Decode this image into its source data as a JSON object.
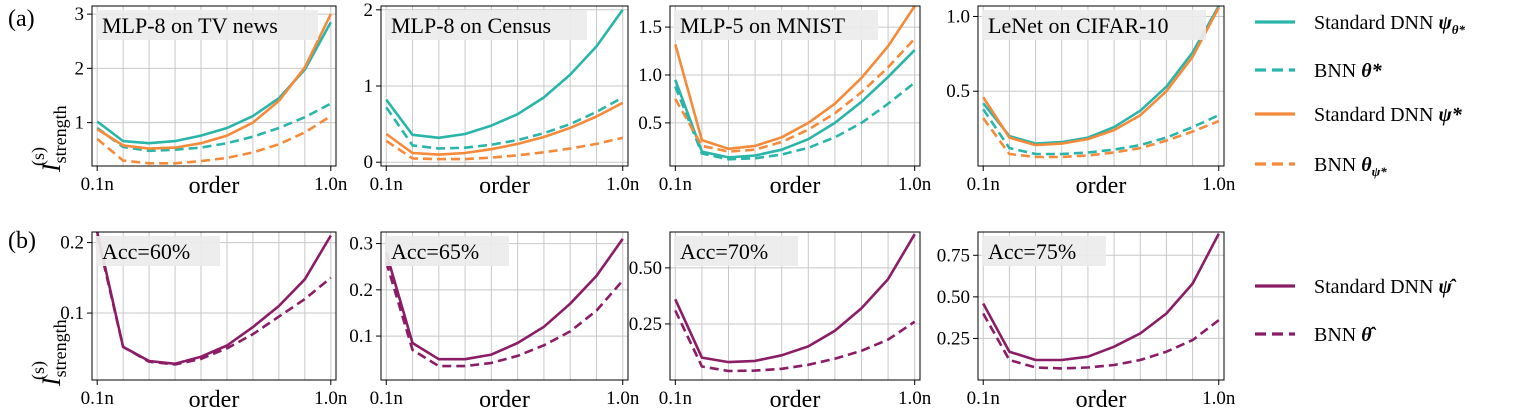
{
  "panel_labels": [
    "(a)",
    "(b)"
  ],
  "ylabel_main": "I",
  "ylabel_sup": "(s)",
  "ylabel_sub": "strength",
  "legend_top": [
    {
      "main": "Standard DNN ",
      "sym": "ψ",
      "sub": "θ*",
      "color": "#2ab5aa",
      "dash": false
    },
    {
      "main": "BNN ",
      "sym": "θ*",
      "sub": "",
      "color": "#2ab5aa",
      "dash": true
    },
    {
      "main": "Standard DNN ",
      "sym": "ψ*",
      "sub": "",
      "color": "#f58a3a",
      "dash": false
    },
    {
      "main": "BNN ",
      "sym": "θ",
      "sub": "ψ*",
      "color": "#f58a3a",
      "dash": true
    }
  ],
  "legend_bottom": [
    {
      "main": "Standard DNN ",
      "sym": "ψ̂",
      "sub": "",
      "color": "#8b1c66",
      "dash": false
    },
    {
      "main": "BNN ",
      "sym": "θ̂",
      "sub": "",
      "color": "#8b1c66",
      "dash": true
    }
  ],
  "chart_data": [
    {
      "type": "line",
      "row": 0,
      "title": "MLP-8 on TV news",
      "xlabel": "order",
      "xtick_labels": [
        "0.1n",
        "1.0n"
      ],
      "xlim": [
        0.08,
        1.02
      ],
      "ylim": [
        0.2,
        3.15
      ],
      "yticks": [
        1,
        2,
        3
      ],
      "ytick_labels": [
        "1",
        "2",
        "3"
      ],
      "x": [
        0.1,
        0.2,
        0.3,
        0.4,
        0.5,
        0.6,
        0.7,
        0.8,
        0.9,
        1.0
      ],
      "series": [
        {
          "name": "Standard DNN ψ_θ*",
          "color": "#2ab5aa",
          "dash": false,
          "values": [
            1.02,
            0.66,
            0.62,
            0.66,
            0.76,
            0.9,
            1.12,
            1.45,
            1.98,
            2.85
          ]
        },
        {
          "name": "BNN θ*",
          "color": "#2ab5aa",
          "dash": true,
          "values": [
            0.9,
            0.55,
            0.48,
            0.5,
            0.54,
            0.62,
            0.74,
            0.9,
            1.1,
            1.35
          ]
        },
        {
          "name": "Standard DNN ψ*",
          "color": "#f58a3a",
          "dash": false,
          "values": [
            0.88,
            0.58,
            0.52,
            0.54,
            0.62,
            0.76,
            1.0,
            1.4,
            2.02,
            3.0
          ]
        },
        {
          "name": "BNN θ_ψ*",
          "color": "#f58a3a",
          "dash": true,
          "values": [
            0.7,
            0.3,
            0.25,
            0.25,
            0.29,
            0.35,
            0.45,
            0.6,
            0.82,
            1.12
          ]
        }
      ]
    },
    {
      "type": "line",
      "row": 0,
      "title": "MLP-8 on Census",
      "xlabel": "order",
      "xtick_labels": [
        "0.1n",
        "1.0n"
      ],
      "xlim": [
        0.08,
        1.02
      ],
      "ylim": [
        -0.05,
        2.05
      ],
      "yticks": [
        0,
        1,
        2
      ],
      "ytick_labels": [
        "0",
        "1",
        "2"
      ],
      "x": [
        0.1,
        0.2,
        0.3,
        0.4,
        0.5,
        0.6,
        0.7,
        0.8,
        0.9,
        1.0
      ],
      "series": [
        {
          "name": "Standard DNN ψ_θ*",
          "color": "#2ab5aa",
          "dash": false,
          "values": [
            0.82,
            0.36,
            0.32,
            0.37,
            0.48,
            0.63,
            0.85,
            1.15,
            1.52,
            2.0
          ]
        },
        {
          "name": "BNN θ*",
          "color": "#2ab5aa",
          "dash": true,
          "values": [
            0.72,
            0.22,
            0.18,
            0.19,
            0.23,
            0.29,
            0.38,
            0.5,
            0.66,
            0.85
          ]
        },
        {
          "name": "Standard DNN ψ*",
          "color": "#f58a3a",
          "dash": false,
          "values": [
            0.37,
            0.12,
            0.1,
            0.12,
            0.17,
            0.24,
            0.33,
            0.45,
            0.6,
            0.78
          ]
        },
        {
          "name": "BNN θ_ψ*",
          "color": "#f58a3a",
          "dash": true,
          "values": [
            0.28,
            0.05,
            0.04,
            0.04,
            0.06,
            0.09,
            0.13,
            0.18,
            0.24,
            0.32
          ]
        }
      ]
    },
    {
      "type": "line",
      "row": 0,
      "title": "MLP-5 on MNIST",
      "xlabel": "order",
      "xtick_labels": [
        "0.1n",
        "1.0n"
      ],
      "xlim": [
        0.08,
        1.02
      ],
      "ylim": [
        0.05,
        1.72
      ],
      "yticks": [
        0.5,
        1.0,
        1.5
      ],
      "ytick_labels": [
        "0.5",
        "1.0",
        "1.5"
      ],
      "x": [
        0.1,
        0.2,
        0.3,
        0.4,
        0.5,
        0.6,
        0.7,
        0.8,
        0.9,
        1.0
      ],
      "series": [
        {
          "name": "Standard DNN ψ_θ*",
          "color": "#2ab5aa",
          "dash": false,
          "values": [
            0.95,
            0.2,
            0.14,
            0.16,
            0.22,
            0.33,
            0.5,
            0.72,
            0.98,
            1.26
          ]
        },
        {
          "name": "BNN θ*",
          "color": "#2ab5aa",
          "dash": true,
          "values": [
            0.88,
            0.18,
            0.12,
            0.13,
            0.17,
            0.24,
            0.35,
            0.5,
            0.7,
            0.92
          ]
        },
        {
          "name": "Standard DNN ψ*",
          "color": "#f58a3a",
          "dash": false,
          "values": [
            1.32,
            0.32,
            0.23,
            0.26,
            0.35,
            0.5,
            0.7,
            0.97,
            1.3,
            1.72
          ]
        },
        {
          "name": "BNN θ_ψ*",
          "color": "#f58a3a",
          "dash": true,
          "values": [
            0.75,
            0.26,
            0.2,
            0.22,
            0.3,
            0.43,
            0.6,
            0.82,
            1.08,
            1.38
          ]
        }
      ]
    },
    {
      "type": "line",
      "row": 0,
      "title": "LeNet on CIFAR-10",
      "xlabel": "order",
      "xtick_labels": [
        "0.1n",
        "1.0n"
      ],
      "xlim": [
        0.08,
        1.02
      ],
      "ylim": [
        0.0,
        1.07
      ],
      "yticks": [
        0.5,
        1.0
      ],
      "ytick_labels": [
        "0.5",
        "1.0"
      ],
      "x": [
        0.1,
        0.2,
        0.3,
        0.4,
        0.5,
        0.6,
        0.7,
        0.8,
        0.9,
        1.0
      ],
      "series": [
        {
          "name": "Standard DNN ψ_θ*",
          "color": "#2ab5aa",
          "dash": false,
          "values": [
            0.42,
            0.2,
            0.15,
            0.16,
            0.19,
            0.26,
            0.37,
            0.53,
            0.76,
            1.07
          ]
        },
        {
          "name": "BNN θ*",
          "color": "#2ab5aa",
          "dash": true,
          "values": [
            0.38,
            0.12,
            0.08,
            0.08,
            0.09,
            0.11,
            0.14,
            0.19,
            0.26,
            0.34
          ]
        },
        {
          "name": "Standard DNN ψ*",
          "color": "#f58a3a",
          "dash": false,
          "values": [
            0.46,
            0.19,
            0.14,
            0.15,
            0.18,
            0.24,
            0.34,
            0.5,
            0.73,
            1.06
          ]
        },
        {
          "name": "BNN θ_ψ*",
          "color": "#f58a3a",
          "dash": true,
          "values": [
            0.32,
            0.08,
            0.06,
            0.06,
            0.07,
            0.09,
            0.12,
            0.17,
            0.23,
            0.3
          ]
        }
      ]
    },
    {
      "type": "line",
      "row": 1,
      "title": "Acc=60%",
      "xlabel": "order",
      "xtick_labels": [
        "0.1n",
        "1.0n"
      ],
      "xlim": [
        0.08,
        1.02
      ],
      "ylim": [
        0.005,
        0.215
      ],
      "yticks": [
        0.1,
        0.2
      ],
      "ytick_labels": [
        "0.1",
        "0.2"
      ],
      "x": [
        0.1,
        0.2,
        0.3,
        0.4,
        0.5,
        0.6,
        0.7,
        0.8,
        0.9,
        1.0
      ],
      "series": [
        {
          "name": "Standard DNN ψ̂",
          "color": "#8b1c66",
          "dash": false,
          "values": [
            0.215,
            0.052,
            0.032,
            0.028,
            0.038,
            0.054,
            0.08,
            0.11,
            0.148,
            0.21
          ]
        },
        {
          "name": "BNN θ̂",
          "color": "#8b1c66",
          "dash": true,
          "values": [
            0.21,
            0.052,
            0.031,
            0.027,
            0.035,
            0.05,
            0.07,
            0.095,
            0.12,
            0.15
          ]
        }
      ]
    },
    {
      "type": "line",
      "row": 1,
      "title": "Acc=65%",
      "xlabel": "order",
      "xtick_labels": [
        "0.1n",
        "1.0n"
      ],
      "xlim": [
        0.08,
        1.02
      ],
      "ylim": [
        0.005,
        0.325
      ],
      "yticks": [
        0.1,
        0.2,
        0.3
      ],
      "ytick_labels": [
        "0.1",
        "0.2",
        "0.3"
      ],
      "x": [
        0.1,
        0.2,
        0.3,
        0.4,
        0.5,
        0.6,
        0.7,
        0.8,
        0.9,
        1.0
      ],
      "series": [
        {
          "name": "Standard DNN ψ̂",
          "color": "#8b1c66",
          "dash": false,
          "values": [
            0.28,
            0.085,
            0.05,
            0.05,
            0.06,
            0.085,
            0.12,
            0.17,
            0.23,
            0.31
          ]
        },
        {
          "name": "BNN θ̂",
          "color": "#8b1c66",
          "dash": true,
          "values": [
            0.26,
            0.07,
            0.035,
            0.035,
            0.042,
            0.057,
            0.08,
            0.11,
            0.155,
            0.22
          ]
        }
      ]
    },
    {
      "type": "line",
      "row": 1,
      "title": "Acc=70%",
      "xlabel": "order",
      "xtick_labels": [
        "0.1n",
        "1.0n"
      ],
      "xlim": [
        0.08,
        1.02
      ],
      "ylim": [
        0.0,
        0.66
      ],
      "yticks": [
        0.25,
        0.5
      ],
      "ytick_labels": [
        "0.25",
        "0.50"
      ],
      "x": [
        0.1,
        0.2,
        0.3,
        0.4,
        0.5,
        0.6,
        0.7,
        0.8,
        0.9,
        1.0
      ],
      "series": [
        {
          "name": "Standard DNN ψ̂",
          "color": "#8b1c66",
          "dash": false,
          "values": [
            0.36,
            0.1,
            0.08,
            0.085,
            0.11,
            0.15,
            0.22,
            0.32,
            0.45,
            0.65
          ]
        },
        {
          "name": "BNN θ̂",
          "color": "#8b1c66",
          "dash": true,
          "values": [
            0.31,
            0.06,
            0.04,
            0.042,
            0.05,
            0.068,
            0.095,
            0.13,
            0.18,
            0.26
          ]
        }
      ]
    },
    {
      "type": "line",
      "row": 1,
      "title": "Acc=75%",
      "xlabel": "order",
      "xtick_labels": [
        "0.1n",
        "1.0n"
      ],
      "xlim": [
        0.08,
        1.02
      ],
      "ylim": [
        0.0,
        0.89
      ],
      "yticks": [
        0.25,
        0.5,
        0.75
      ],
      "ytick_labels": [
        "0.25",
        "0.50",
        "0.75"
      ],
      "x": [
        0.1,
        0.2,
        0.3,
        0.4,
        0.5,
        0.6,
        0.7,
        0.8,
        0.9,
        1.0
      ],
      "series": [
        {
          "name": "Standard DNN ψ̂",
          "color": "#8b1c66",
          "dash": false,
          "values": [
            0.46,
            0.17,
            0.12,
            0.12,
            0.14,
            0.2,
            0.28,
            0.4,
            0.58,
            0.88
          ]
        },
        {
          "name": "BNN θ̂",
          "color": "#8b1c66",
          "dash": true,
          "values": [
            0.4,
            0.12,
            0.075,
            0.07,
            0.075,
            0.09,
            0.12,
            0.17,
            0.24,
            0.36
          ]
        }
      ]
    }
  ]
}
